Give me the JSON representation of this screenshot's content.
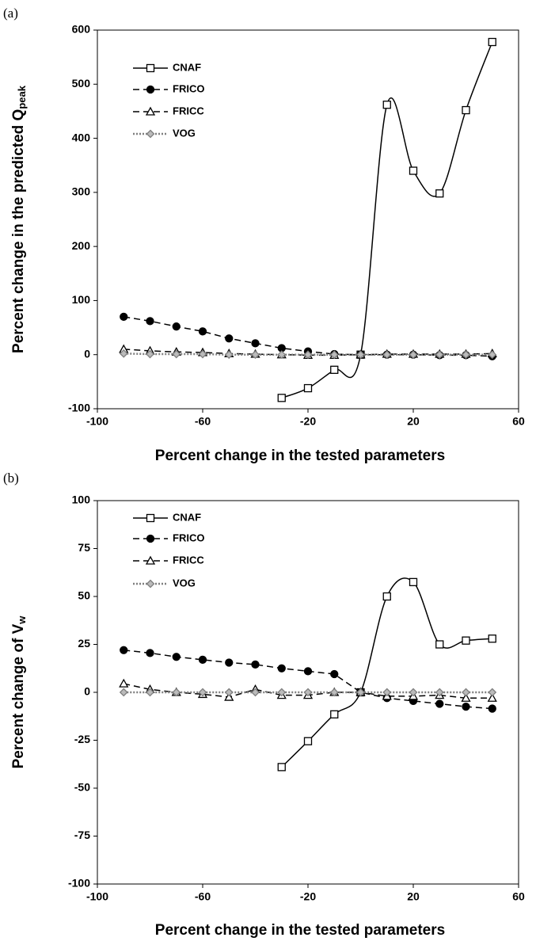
{
  "chart_data": [
    {
      "type": "line",
      "panel_label": "(a)",
      "xlabel": "Percent change in the tested parameters",
      "ylabel": "Percent change in the predicted Q",
      "ylabel_sub": "peak",
      "x": [
        -90,
        -80,
        -70,
        -60,
        -50,
        -40,
        -30,
        -20,
        -10,
        0,
        10,
        20,
        30,
        40,
        50
      ],
      "xlim": [
        -100,
        60
      ],
      "xticks": [
        -100,
        -60,
        -20,
        20,
        60
      ],
      "ylim": [
        -100,
        600
      ],
      "yticks": [
        -100,
        0,
        100,
        200,
        300,
        400,
        500,
        600
      ],
      "series": [
        {
          "name": "CNAF",
          "color": "#000000",
          "marker": "square",
          "linestyle": "solid",
          "smooth": true,
          "values": [
            null,
            null,
            null,
            null,
            null,
            null,
            -80,
            -62,
            -28,
            0,
            462,
            340,
            298,
            452,
            578
          ]
        },
        {
          "name": "FRICO",
          "color": "#000000",
          "marker": "circle",
          "linestyle": "dashed",
          "smooth": false,
          "values": [
            70,
            62,
            52,
            43,
            30,
            21,
            12,
            6,
            1,
            0,
            0,
            0,
            -1,
            -1,
            -3
          ]
        },
        {
          "name": "FRICC",
          "color": "#000000",
          "marker": "triangle",
          "linestyle": "dashed",
          "smooth": false,
          "values": [
            10,
            7,
            5,
            4,
            2,
            1,
            0,
            -1,
            -1,
            0,
            1,
            1,
            1,
            1,
            2
          ]
        },
        {
          "name": "VOG",
          "color": "#7f7f7f",
          "marker": "diamond",
          "linestyle": "dotted",
          "smooth": false,
          "values": [
            2,
            1,
            1,
            1,
            0,
            0,
            0,
            0,
            0,
            0,
            0,
            0,
            0,
            0,
            0
          ]
        }
      ]
    },
    {
      "type": "line",
      "panel_label": "(b)",
      "xlabel": "Percent change in the tested parameters",
      "ylabel": "Percent change of V",
      "ylabel_sub": "w",
      "x": [
        -90,
        -80,
        -70,
        -60,
        -50,
        -40,
        -30,
        -20,
        -10,
        0,
        10,
        20,
        30,
        40,
        50
      ],
      "xlim": [
        -100,
        60
      ],
      "xticks": [
        -100,
        -60,
        -20,
        20,
        60
      ],
      "ylim": [
        -100,
        100
      ],
      "yticks": [
        -100,
        -75,
        -50,
        -25,
        0,
        25,
        50,
        75,
        100
      ],
      "series": [
        {
          "name": "CNAF",
          "color": "#000000",
          "marker": "square",
          "linestyle": "solid",
          "smooth": true,
          "values": [
            null,
            null,
            null,
            null,
            null,
            null,
            -39,
            -25.5,
            -11.5,
            0,
            50,
            57.5,
            25,
            27,
            28
          ]
        },
        {
          "name": "FRICO",
          "color": "#000000",
          "marker": "circle",
          "linestyle": "dashed",
          "smooth": false,
          "values": [
            22,
            20.5,
            18.5,
            17,
            15.5,
            14.5,
            12.5,
            11,
            9.5,
            0,
            -3,
            -4.5,
            -6,
            -7.5,
            -8.5
          ]
        },
        {
          "name": "FRICC",
          "color": "#000000",
          "marker": "triangle",
          "linestyle": "dashed",
          "smooth": false,
          "values": [
            4.5,
            1.5,
            0,
            -1,
            -2.5,
            1.5,
            -1.5,
            -1.5,
            0,
            0,
            -2,
            -2,
            -1.5,
            -3,
            -3
          ]
        },
        {
          "name": "VOG",
          "color": "#7f7f7f",
          "marker": "diamond",
          "linestyle": "dotted",
          "smooth": false,
          "values": [
            0,
            0,
            0,
            0,
            0,
            0,
            0,
            0,
            0,
            0,
            0,
            0,
            0,
            0,
            0
          ]
        }
      ]
    }
  ]
}
